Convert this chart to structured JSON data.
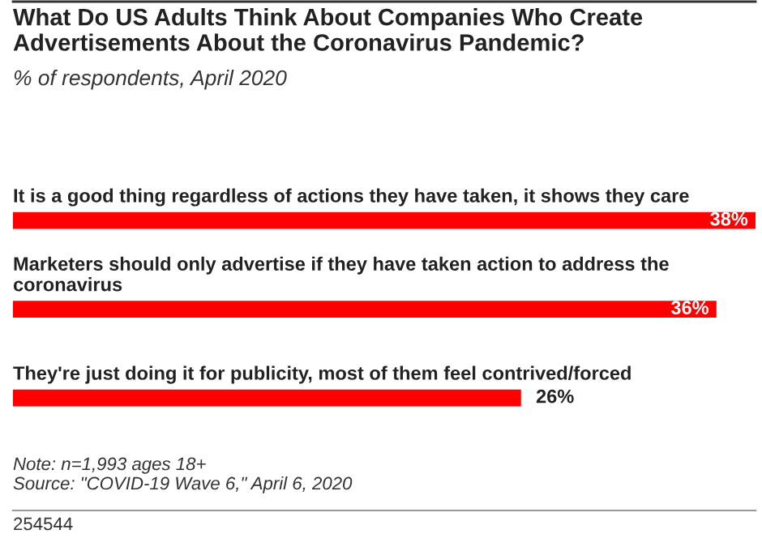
{
  "chart_data": {
    "type": "bar",
    "orientation": "horizontal",
    "title": "What Do US Adults Think About Companies Who Create Advertisements About the Coronavirus Pandemic?",
    "subtitle": "% of respondents, April 2020",
    "categories": [
      "It is a good thing regardless of actions they have taken, it shows they care",
      "Marketers should only advertise if they have taken action to address the coronavirus",
      "They're just doing it for publicity, most of them feel contrived/forced"
    ],
    "values": [
      38,
      36,
      26
    ],
    "value_labels": [
      "38%",
      "36%",
      "26%"
    ],
    "color": "#ff0000",
    "annotations": [
      "Note: n=1,993 ages 18+",
      "Source: \"COVID-19 Wave 6,\" April 6, 2020",
      "254544"
    ]
  }
}
